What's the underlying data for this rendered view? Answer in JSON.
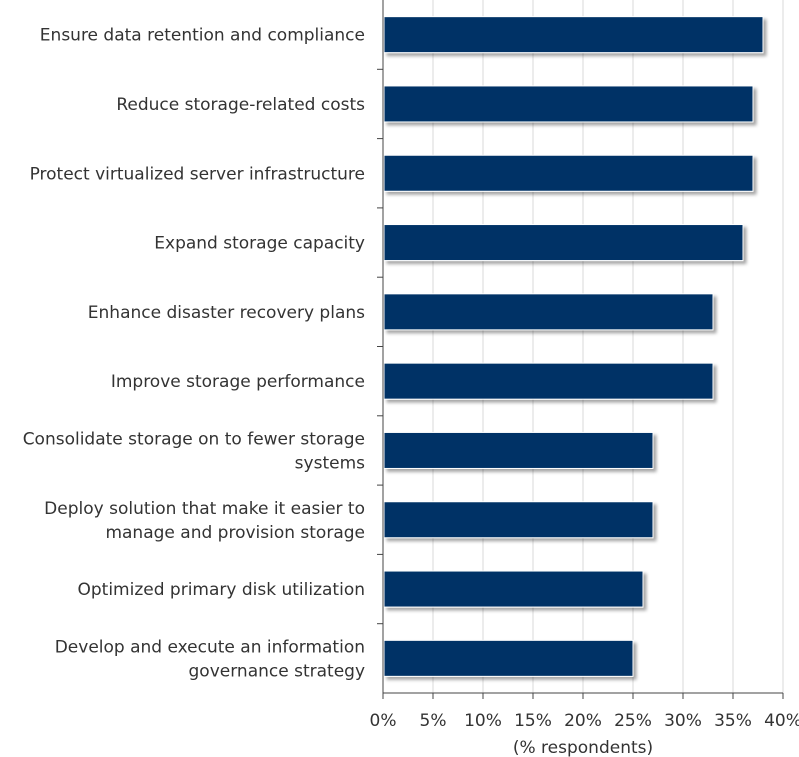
{
  "chart_data": {
    "type": "bar",
    "orientation": "horizontal",
    "categories": [
      [
        "Ensure data retention and compliance"
      ],
      [
        "Reduce storage-related costs"
      ],
      [
        "Protect virtualized server infrastructure"
      ],
      [
        "Expand storage capacity"
      ],
      [
        "Enhance disaster recovery plans"
      ],
      [
        "Improve storage performance"
      ],
      [
        "Consolidate storage on to fewer storage",
        "systems"
      ],
      [
        "Deploy solution that make it easier to",
        "manage and provision storage"
      ],
      [
        "Optimized primary disk utilization"
      ],
      [
        "Develop and execute an information",
        "governance strategy"
      ]
    ],
    "values": [
      38,
      37,
      37,
      36,
      33,
      33,
      27,
      27,
      26,
      25
    ],
    "xlim": [
      0,
      40
    ],
    "xticks": [
      "0%",
      "5%",
      "10%",
      "15%",
      "20%",
      "25%",
      "30%",
      "35%",
      "40%"
    ],
    "xlabel": "(% respondents)",
    "grid": "vertical",
    "bar_color": "#003366"
  }
}
